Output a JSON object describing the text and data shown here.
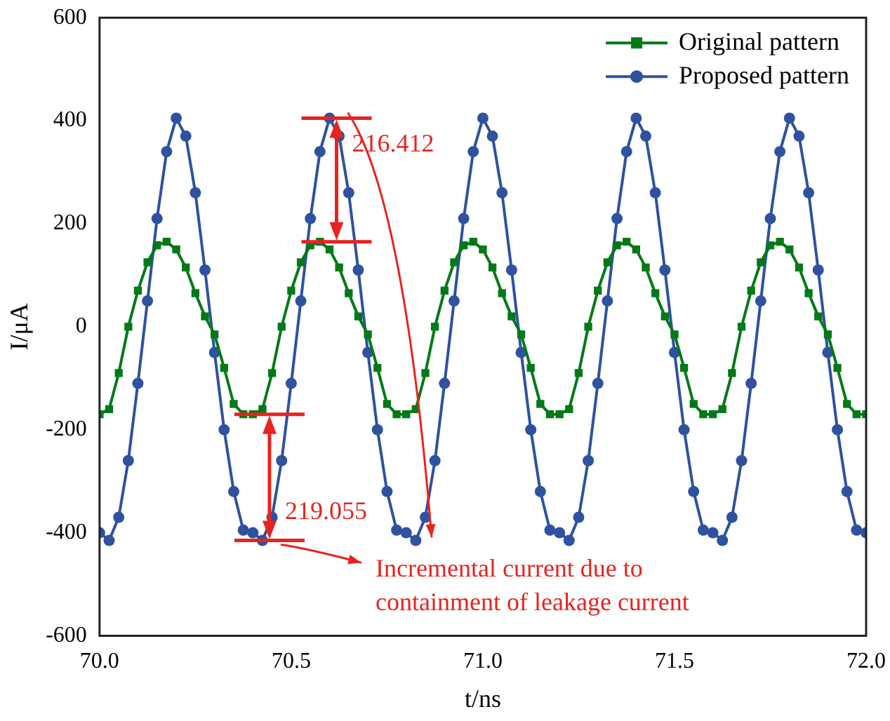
{
  "chart_data": {
    "type": "line",
    "xlabel": "t/ns",
    "ylabel": "I/μA",
    "x": [
      70.0,
      70.025,
      70.05,
      70.075,
      70.1,
      70.125,
      70.15,
      70.175,
      70.2,
      70.225,
      70.25,
      70.275,
      70.3,
      70.325,
      70.35,
      70.375,
      70.4,
      70.425,
      70.45,
      70.475,
      70.5,
      70.525,
      70.55,
      70.575,
      70.6,
      70.625,
      70.65,
      70.675,
      70.7,
      70.725,
      70.75,
      70.775,
      70.8,
      70.825,
      70.85,
      70.875,
      70.9,
      70.925,
      70.95,
      70.975,
      71.0,
      71.025,
      71.05,
      71.075,
      71.1,
      71.125,
      71.15,
      71.175,
      71.2,
      71.225,
      71.25,
      71.275,
      71.3,
      71.325,
      71.35,
      71.375,
      71.4,
      71.425,
      71.45,
      71.475,
      71.5,
      71.525,
      71.55,
      71.575,
      71.6,
      71.625,
      71.65,
      71.675,
      71.7,
      71.725,
      71.75,
      71.775,
      71.8,
      71.825,
      71.85,
      71.875,
      71.9,
      71.925,
      71.95,
      71.975,
      72.0
    ],
    "series": [
      {
        "name": "Original pattern",
        "color": "#007a17",
        "marker": "square",
        "values": [
          -170,
          -160,
          -90,
          0,
          70,
          125,
          158,
          165,
          150,
          115,
          65,
          20,
          -15,
          -80,
          -150,
          -170,
          -170,
          -160,
          -90,
          0,
          70,
          125,
          158,
          165,
          150,
          115,
          65,
          20,
          -15,
          -80,
          -150,
          -170,
          -170,
          -160,
          -90,
          0,
          70,
          125,
          158,
          165,
          150,
          115,
          65,
          20,
          -15,
          -80,
          -150,
          -170,
          -170,
          -160,
          -90,
          0,
          70,
          125,
          158,
          165,
          150,
          115,
          65,
          20,
          -15,
          -80,
          -150,
          -170,
          -170,
          -160,
          -90,
          0,
          70,
          125,
          158,
          165,
          150,
          115,
          65,
          20,
          -15,
          -80,
          -150,
          -170,
          -170
        ]
      },
      {
        "name": "Proposed pattern",
        "color": "#2f52a0",
        "marker": "circle",
        "values": [
          -400,
          -415,
          -370,
          -260,
          -110,
          50,
          210,
          340,
          405,
          370,
          260,
          110,
          -50,
          -200,
          -320,
          -395,
          -400,
          -415,
          -370,
          -260,
          -110,
          50,
          210,
          340,
          405,
          370,
          260,
          110,
          -50,
          -200,
          -320,
          -395,
          -400,
          -415,
          -370,
          -260,
          -110,
          50,
          210,
          340,
          405,
          370,
          260,
          110,
          -50,
          -200,
          -320,
          -395,
          -400,
          -415,
          -370,
          -260,
          -110,
          50,
          210,
          340,
          405,
          370,
          260,
          110,
          -50,
          -200,
          -320,
          -395,
          -400,
          -415,
          -370,
          -260,
          -110,
          50,
          210,
          340,
          405,
          370,
          260,
          110,
          -50,
          -200,
          -320,
          -395,
          -400
        ]
      }
    ],
    "xlim": [
      70.0,
      72.0
    ],
    "xticks": [
      {
        "value": 70,
        "label": "70.0"
      },
      {
        "value": 70.5,
        "label": "70.5"
      },
      {
        "value": 71,
        "label": "71.0"
      },
      {
        "value": 71.5,
        "label": "71.5"
      },
      {
        "value": 72,
        "label": "72.0"
      }
    ],
    "ylim": [
      -600,
      600
    ],
    "yticks": [
      -600,
      -400,
      -200,
      0,
      200,
      400,
      600
    ],
    "grid": false,
    "legend": "top right",
    "line_style": "solid",
    "annotations": [
      "216.412",
      "219.055",
      "Incremental current due to containment of leakage current"
    ]
  }
}
